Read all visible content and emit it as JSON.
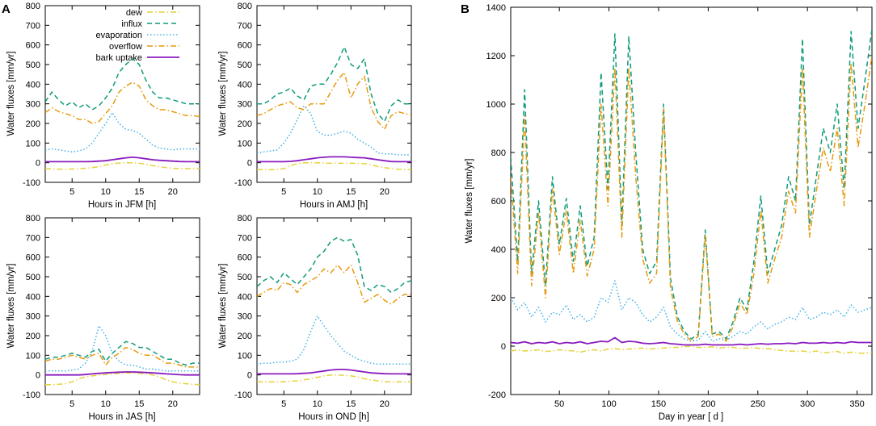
{
  "figure": {
    "label_A": "A",
    "label_B": "B"
  },
  "legend": [
    {
      "name": "dew",
      "color": "#e6d23a",
      "dash": "dashdot"
    },
    {
      "name": "influx",
      "color": "#0e9b7a",
      "dash": "dash"
    },
    {
      "name": "evaporation",
      "color": "#43b0e8",
      "dash": "dot"
    },
    {
      "name": "overflow",
      "color": "#e69b10",
      "dash": "dashdot"
    },
    {
      "name": "bark uptake",
      "color": "#8a1bbf",
      "dash": "solid"
    }
  ],
  "chart_data": [
    {
      "id": "JFM",
      "type": "line",
      "xlabel": "Hours in JFM [h]",
      "ylabel": "Water fluxes [mm/yr]",
      "xlim": [
        1,
        24
      ],
      "ylim": [
        -100,
        800
      ],
      "xticks": [
        5,
        10,
        15,
        20
      ],
      "yticks": [
        -100,
        0,
        100,
        200,
        300,
        400,
        500,
        600,
        700,
        800
      ],
      "x": [
        1,
        2,
        3,
        4,
        5,
        6,
        7,
        8,
        9,
        10,
        11,
        12,
        13,
        14,
        15,
        16,
        17,
        18,
        19,
        20,
        21,
        22,
        23,
        24
      ],
      "series": [
        {
          "name": "dew",
          "values": [
            -30,
            -32,
            -33,
            -33,
            -32,
            -30,
            -28,
            -25,
            -20,
            -12,
            -5,
            -2,
            0,
            0,
            -3,
            -8,
            -15,
            -20,
            -25,
            -28,
            -30,
            -30,
            -30,
            -30
          ]
        },
        {
          "name": "influx",
          "values": [
            310,
            360,
            320,
            290,
            310,
            280,
            300,
            270,
            290,
            330,
            380,
            460,
            500,
            530,
            500,
            420,
            360,
            330,
            330,
            320,
            310,
            300,
            300,
            300
          ]
        },
        {
          "name": "evaporation",
          "values": [
            65,
            70,
            65,
            60,
            55,
            60,
            70,
            100,
            150,
            200,
            255,
            200,
            170,
            165,
            150,
            120,
            90,
            75,
            70,
            65,
            70,
            70,
            70,
            70
          ]
        },
        {
          "name": "overflow",
          "values": [
            255,
            280,
            260,
            250,
            240,
            220,
            220,
            200,
            210,
            250,
            290,
            360,
            390,
            410,
            390,
            320,
            290,
            270,
            270,
            260,
            250,
            240,
            240,
            235
          ]
        },
        {
          "name": "bark uptake",
          "values": [
            5,
            5,
            5,
            5,
            5,
            5,
            5,
            6,
            8,
            10,
            15,
            20,
            25,
            28,
            25,
            20,
            15,
            12,
            10,
            8,
            6,
            5,
            5,
            5
          ]
        }
      ]
    },
    {
      "id": "AMJ",
      "type": "line",
      "xlabel": "Hours in AMJ [h]",
      "ylabel": "Water fluxes [mm/yr]",
      "xlim": [
        1,
        24
      ],
      "ylim": [
        -100,
        800
      ],
      "xticks": [
        5,
        10,
        15,
        20
      ],
      "yticks": [
        -100,
        0,
        100,
        200,
        300,
        400,
        500,
        600,
        700,
        800
      ],
      "x": [
        1,
        2,
        3,
        4,
        5,
        6,
        7,
        8,
        9,
        10,
        11,
        12,
        13,
        14,
        15,
        16,
        17,
        18,
        19,
        20,
        21,
        22,
        23,
        24
      ],
      "series": [
        {
          "name": "dew",
          "values": [
            -35,
            -35,
            -36,
            -35,
            -30,
            -15,
            -5,
            0,
            0,
            0,
            -2,
            -3,
            -3,
            -3,
            -3,
            -3,
            -5,
            -10,
            -20,
            -25,
            -30,
            -33,
            -35,
            -35
          ]
        },
        {
          "name": "influx",
          "values": [
            300,
            300,
            320,
            350,
            360,
            380,
            340,
            320,
            390,
            400,
            400,
            450,
            510,
            590,
            500,
            480,
            530,
            350,
            250,
            210,
            290,
            320,
            300,
            300
          ]
        },
        {
          "name": "evaporation",
          "values": [
            50,
            55,
            60,
            65,
            100,
            150,
            220,
            290,
            250,
            160,
            140,
            140,
            150,
            160,
            150,
            120,
            100,
            80,
            50,
            45,
            45,
            40,
            40,
            40
          ]
        },
        {
          "name": "overflow",
          "values": [
            240,
            250,
            270,
            290,
            300,
            310,
            280,
            270,
            300,
            300,
            300,
            360,
            420,
            460,
            330,
            400,
            440,
            280,
            210,
            170,
            240,
            260,
            250,
            245
          ]
        },
        {
          "name": "bark uptake",
          "values": [
            5,
            5,
            5,
            5,
            5,
            7,
            10,
            15,
            20,
            25,
            28,
            30,
            30,
            30,
            28,
            26,
            25,
            20,
            15,
            10,
            6,
            5,
            5,
            5
          ]
        }
      ]
    },
    {
      "id": "JAS",
      "type": "line",
      "xlabel": "Hours in JAS [h]",
      "ylabel": "Water fluxes [mm/yr]",
      "xlim": [
        1,
        24
      ],
      "ylim": [
        -100,
        800
      ],
      "xticks": [
        5,
        10,
        15,
        20
      ],
      "yticks": [
        -100,
        0,
        100,
        200,
        300,
        400,
        500,
        600,
        700,
        800
      ],
      "x": [
        1,
        2,
        3,
        4,
        5,
        6,
        7,
        8,
        9,
        10,
        11,
        12,
        13,
        14,
        15,
        16,
        17,
        18,
        19,
        20,
        21,
        22,
        23,
        24
      ],
      "series": [
        {
          "name": "dew",
          "values": [
            -50,
            -50,
            -48,
            -45,
            -35,
            -20,
            -10,
            -5,
            0,
            2,
            5,
            8,
            10,
            10,
            8,
            5,
            0,
            -10,
            -25,
            -35,
            -42,
            -45,
            -48,
            -50
          ]
        },
        {
          "name": "influx",
          "values": [
            80,
            90,
            90,
            100,
            110,
            100,
            90,
            120,
            130,
            70,
            110,
            140,
            170,
            160,
            140,
            140,
            120,
            100,
            80,
            80,
            60,
            50,
            60,
            60
          ]
        },
        {
          "name": "evaporation",
          "values": [
            20,
            20,
            20,
            20,
            25,
            30,
            60,
            120,
            250,
            200,
            110,
            70,
            50,
            50,
            40,
            30,
            30,
            25,
            20,
            20,
            20,
            20,
            20,
            20
          ]
        },
        {
          "name": "overflow",
          "values": [
            70,
            80,
            80,
            90,
            100,
            90,
            80,
            100,
            110,
            50,
            90,
            110,
            140,
            130,
            110,
            100,
            100,
            80,
            60,
            60,
            50,
            40,
            40,
            40
          ]
        },
        {
          "name": "bark uptake",
          "values": [
            0,
            0,
            0,
            0,
            0,
            0,
            2,
            5,
            8,
            10,
            12,
            14,
            15,
            15,
            14,
            12,
            10,
            8,
            5,
            3,
            1,
            0,
            0,
            0
          ]
        }
      ]
    },
    {
      "id": "OND",
      "type": "line",
      "xlabel": "Hours in OND [h]",
      "ylabel": "Water fluxes [mm/yr]",
      "xlim": [
        1,
        24
      ],
      "ylim": [
        -100,
        800
      ],
      "xticks": [
        5,
        10,
        15,
        20
      ],
      "yticks": [
        -100,
        0,
        100,
        200,
        300,
        400,
        500,
        600,
        700,
        800
      ],
      "x": [
        1,
        2,
        3,
        4,
        5,
        6,
        7,
        8,
        9,
        10,
        11,
        12,
        13,
        14,
        15,
        16,
        17,
        18,
        19,
        20,
        21,
        22,
        23,
        24
      ],
      "series": [
        {
          "name": "dew",
          "values": [
            -35,
            -35,
            -36,
            -36,
            -35,
            -33,
            -30,
            -25,
            -20,
            -12,
            -5,
            0,
            0,
            -2,
            -5,
            -10,
            -20,
            -25,
            -30,
            -35,
            -35,
            -35,
            -35,
            -35
          ]
        },
        {
          "name": "influx",
          "values": [
            450,
            480,
            500,
            470,
            520,
            490,
            460,
            500,
            540,
            600,
            630,
            680,
            700,
            680,
            690,
            610,
            450,
            430,
            460,
            450,
            420,
            440,
            470,
            480
          ]
        },
        {
          "name": "evaporation",
          "values": [
            55,
            60,
            60,
            65,
            65,
            70,
            80,
            130,
            220,
            300,
            250,
            200,
            160,
            120,
            100,
            80,
            70,
            60,
            55,
            55,
            55,
            55,
            55,
            55
          ]
        },
        {
          "name": "overflow",
          "values": [
            400,
            420,
            440,
            430,
            470,
            460,
            420,
            460,
            480,
            500,
            540,
            520,
            560,
            520,
            560,
            470,
            370,
            390,
            410,
            380,
            360,
            390,
            410,
            410
          ]
        },
        {
          "name": "bark uptake",
          "values": [
            5,
            5,
            5,
            5,
            5,
            5,
            6,
            8,
            10,
            15,
            20,
            25,
            28,
            28,
            25,
            20,
            15,
            10,
            8,
            6,
            5,
            5,
            5,
            5
          ]
        }
      ]
    },
    {
      "id": "annual",
      "type": "line",
      "xlabel": "Day in year [ d ]",
      "ylabel": "Water fluxes [mm/yr]",
      "xlim": [
        1,
        365
      ],
      "ylim": [
        -200,
        1400
      ],
      "xticks": [
        50,
        100,
        150,
        200,
        250,
        300,
        350
      ],
      "yticks": [
        -200,
        0,
        200,
        400,
        600,
        800,
        1000,
        1200,
        1400
      ],
      "x": [
        1,
        8,
        15,
        22,
        29,
        36,
        43,
        50,
        57,
        64,
        71,
        78,
        85,
        92,
        99,
        106,
        113,
        120,
        127,
        134,
        141,
        148,
        155,
        162,
        169,
        176,
        183,
        190,
        197,
        204,
        211,
        218,
        225,
        232,
        239,
        246,
        253,
        260,
        267,
        274,
        281,
        288,
        295,
        302,
        309,
        316,
        323,
        330,
        337,
        344,
        351,
        358,
        365
      ],
      "series": [
        {
          "name": "dew",
          "values": [
            -20,
            -15,
            -20,
            -18,
            -15,
            -22,
            -20,
            -15,
            -18,
            -20,
            -25,
            -18,
            -15,
            -20,
            -12,
            -10,
            -15,
            -12,
            -10,
            -8,
            -12,
            -10,
            -8,
            -5,
            -5,
            -2,
            0,
            -5,
            -5,
            -3,
            -8,
            -5,
            -5,
            -10,
            -8,
            -5,
            -12,
            -10,
            -15,
            -18,
            -20,
            -22,
            -20,
            -25,
            -20,
            -28,
            -25,
            -22,
            -30,
            -25,
            -28,
            -30,
            -25
          ]
        },
        {
          "name": "influx",
          "values": [
            780,
            350,
            1060,
            300,
            600,
            250,
            700,
            420,
            610,
            350,
            580,
            330,
            450,
            1130,
            650,
            1290,
            500,
            1280,
            800,
            400,
            300,
            350,
            1000,
            280,
            120,
            60,
            30,
            50,
            480,
            50,
            60,
            30,
            100,
            200,
            150,
            350,
            620,
            300,
            400,
            500,
            700,
            600,
            1270,
            500,
            700,
            900,
            800,
            1000,
            650,
            1300,
            900,
            1100,
            1310
          ]
        },
        {
          "name": "evaporation",
          "values": [
            200,
            150,
            180,
            120,
            160,
            100,
            140,
            130,
            170,
            110,
            130,
            100,
            120,
            200,
            180,
            270,
            150,
            200,
            180,
            130,
            100,
            120,
            160,
            80,
            50,
            30,
            20,
            25,
            60,
            20,
            30,
            25,
            40,
            60,
            50,
            80,
            100,
            70,
            90,
            100,
            120,
            110,
            160,
            110,
            120,
            140,
            130,
            150,
            120,
            170,
            140,
            150,
            160
          ]
        },
        {
          "name": "overflow",
          "values": [
            700,
            300,
            950,
            250,
            550,
            200,
            650,
            380,
            560,
            300,
            520,
            290,
            400,
            1000,
            580,
            1150,
            450,
            1150,
            700,
            360,
            260,
            300,
            980,
            240,
            100,
            50,
            20,
            40,
            460,
            40,
            50,
            20,
            80,
            180,
            130,
            300,
            560,
            260,
            360,
            450,
            640,
            550,
            1150,
            450,
            640,
            820,
            720,
            900,
            580,
            1170,
            820,
            1000,
            1200
          ]
        },
        {
          "name": "bark uptake",
          "values": [
            15,
            12,
            18,
            10,
            15,
            12,
            18,
            10,
            15,
            12,
            18,
            10,
            15,
            20,
            18,
            35,
            15,
            20,
            18,
            12,
            10,
            12,
            15,
            10,
            8,
            5,
            5,
            5,
            8,
            5,
            5,
            5,
            5,
            8,
            5,
            8,
            10,
            8,
            10,
            10,
            12,
            10,
            15,
            12,
            12,
            15,
            12,
            15,
            12,
            18,
            15,
            15,
            15
          ]
        }
      ]
    }
  ]
}
